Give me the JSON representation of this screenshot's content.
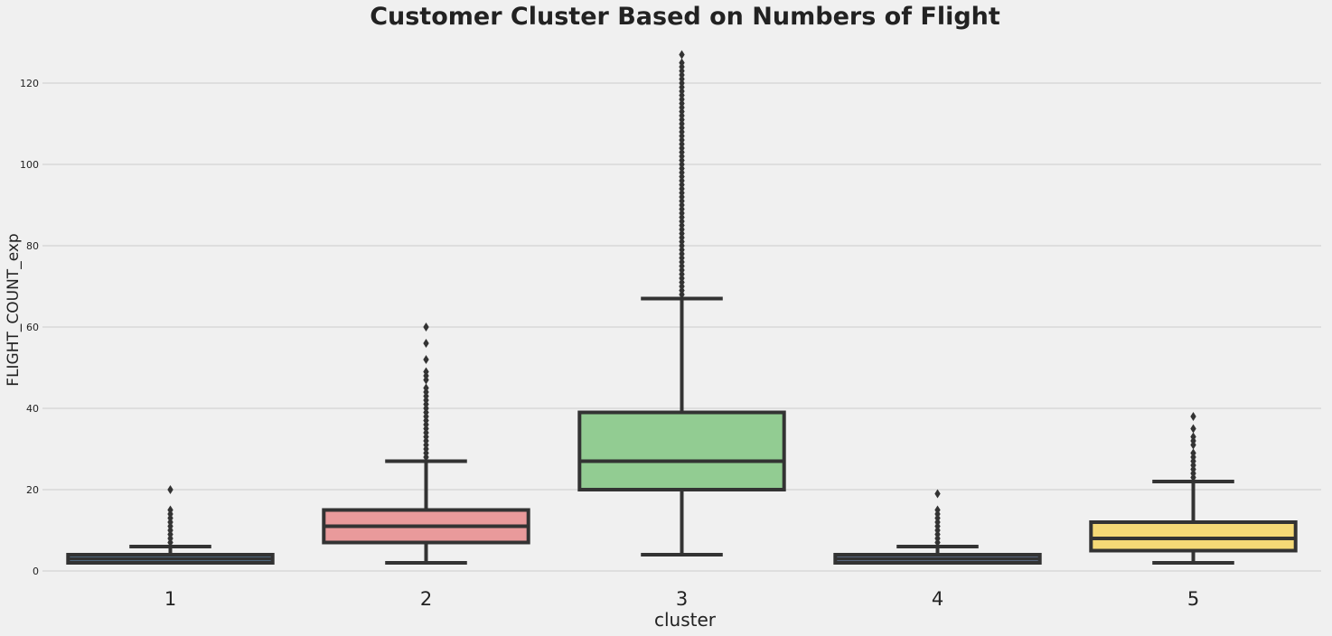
{
  "chart_data": {
    "type": "box",
    "title": "Customer Cluster Based on Numbers of Flight",
    "xlabel": "cluster",
    "ylabel": "FLIGHT_COUNT_exp",
    "ylim": [
      0,
      130
    ],
    "yticks": [
      "0",
      "20",
      "40",
      "60",
      "80",
      "100",
      "120"
    ],
    "grid": "horizontal",
    "categories": [
      "1",
      "2",
      "3",
      "4",
      "5"
    ],
    "colors": [
      "#6a98c6",
      "#e99a9b",
      "#92cc92",
      "#7e99c8",
      "#f5d976"
    ],
    "edge_color": "#333333",
    "boxes": [
      {
        "whisker_low": 2,
        "q1": 2,
        "median": 3,
        "q3": 4,
        "whisker_high": 6,
        "outliers": [
          7,
          8,
          9,
          10,
          11,
          12,
          13,
          14,
          15,
          20
        ]
      },
      {
        "whisker_low": 2,
        "q1": 7,
        "median": 11,
        "q3": 15,
        "whisker_high": 27,
        "outliers": [
          28,
          29,
          30,
          31,
          32,
          33,
          34,
          35,
          36,
          37,
          38,
          39,
          40,
          41,
          42,
          43,
          44,
          45,
          47,
          48,
          49,
          52,
          56,
          60
        ]
      },
      {
        "whisker_low": 4,
        "q1": 20,
        "median": 27,
        "q3": 39,
        "whisker_high": 67,
        "outliers": [
          68,
          69,
          70,
          71,
          72,
          73,
          74,
          75,
          76,
          77,
          78,
          79,
          80,
          81,
          82,
          83,
          84,
          85,
          86,
          87,
          88,
          89,
          90,
          91,
          92,
          93,
          94,
          95,
          96,
          97,
          98,
          99,
          100,
          101,
          102,
          103,
          104,
          105,
          106,
          107,
          108,
          109,
          110,
          111,
          112,
          113,
          114,
          115,
          116,
          117,
          118,
          119,
          120,
          121,
          122,
          123,
          124,
          125,
          127
        ]
      },
      {
        "whisker_low": 2,
        "q1": 2,
        "median": 3,
        "q3": 4,
        "whisker_high": 6,
        "outliers": [
          7,
          8,
          9,
          10,
          11,
          12,
          13,
          14,
          15,
          19
        ]
      },
      {
        "whisker_low": 2,
        "q1": 5,
        "median": 8,
        "q3": 12,
        "whisker_high": 22,
        "outliers": [
          23,
          24,
          25,
          26,
          27,
          28,
          29,
          31,
          32,
          33,
          35,
          38
        ]
      }
    ]
  }
}
